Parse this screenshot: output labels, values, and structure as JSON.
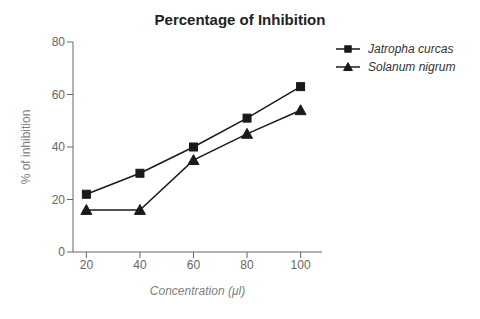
{
  "chart_data": {
    "type": "line",
    "title": "Percentage of Inhibition",
    "xlabel": "Concentration (μl)",
    "ylabel": "% of inhibition",
    "x": [
      20,
      40,
      60,
      80,
      100
    ],
    "series": [
      {
        "name": "Jatropha curcas",
        "color": "#1a1a1a",
        "marker": "square",
        "values": [
          22,
          30,
          40,
          51,
          63
        ]
      },
      {
        "name": "Solanum nigrum",
        "color": "#1a1a1a",
        "marker": "triangle",
        "values": [
          16,
          16,
          35,
          45,
          54
        ]
      }
    ],
    "xlim": [
      15,
      108
    ],
    "ylim": [
      0,
      80
    ],
    "xticks": [
      20,
      40,
      60,
      80,
      100
    ],
    "yticks": [
      0,
      20,
      40,
      60,
      80
    ],
    "grid": false,
    "legend": "upper right"
  }
}
